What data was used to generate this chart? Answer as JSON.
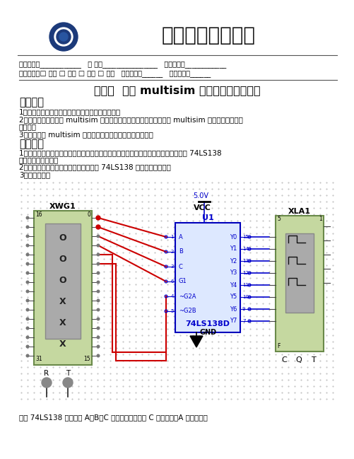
{
  "title_text": "南昌大学实验报告",
  "header_fields": "学生姓名：____________   学 号：________________   专业班级：____________",
  "header_fields2": "实验类型：□ 验证 □ 综合 □ 设计 □ 创新   实验日期：______   实验成绩：______",
  "exp_title": "实验十  基于 multisim 的数字电路仿真实验",
  "section1": "实验目的",
  "item1": "1、掌握虚拟器库中关于数字电路仪器的使用方法；",
  "item2a": "2、进一步了解并掌握 multisim 仿真软件的操作技巧和分析方法以及 multisim 的常用快捷键的熟",
  "item2b": "练使用；",
  "item3": "3、学会使用 multisim 进行实验前或做实物前的电路仿真；",
  "section2": "实验原理",
  "prin1a": "1、利用字发生器产生一定的序列接入一个芯片验证其逻辑功能是否正确，本实验验证 74LS138",
  "prin1b": "译码器的逻辑功能；",
  "prin2": "2、利用逻辑分析仪的逻辑分析功能实验 74LS138 逻辑功能的分析；",
  "prin3": "3、实验原理图",
  "footer_text": "其中 74LS138 的输入端 A、B、C 位次分别升高，即 C 为最高位，A 为最低位。",
  "bg_color": "#ffffff"
}
